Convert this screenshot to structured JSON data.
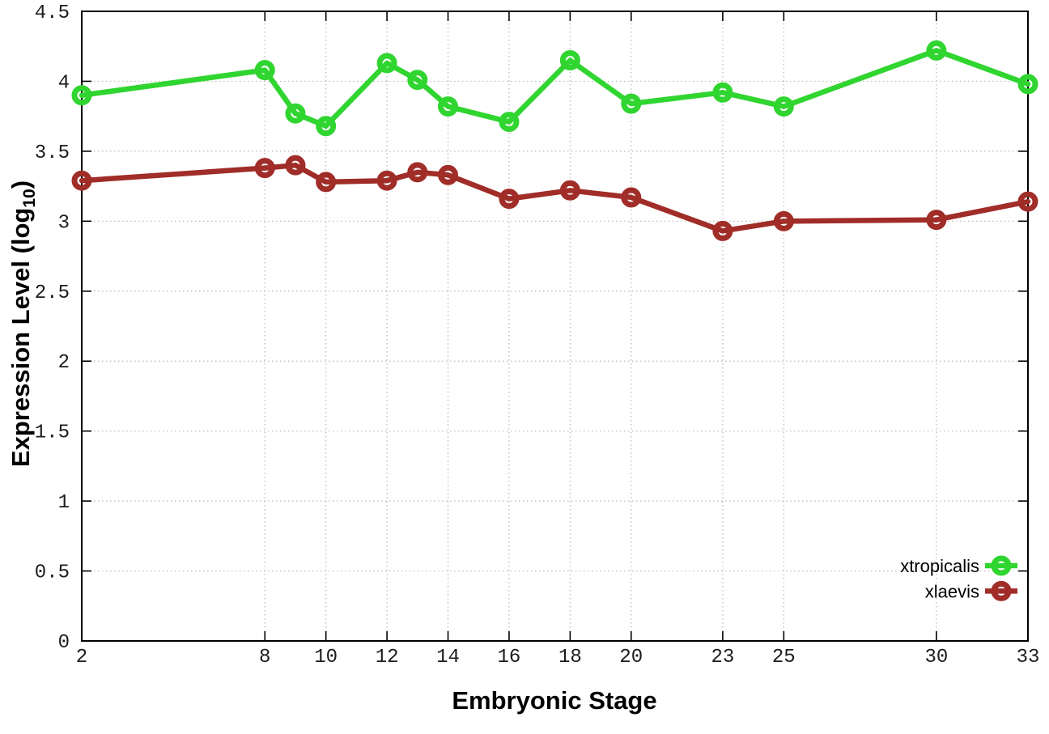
{
  "chart_data": {
    "type": "line",
    "title": "",
    "xlabel": "Embryonic Stage",
    "ylabel": {
      "prefix": "Expression Level (log",
      "subscript": "10",
      "suffix": ")"
    },
    "x": [
      2,
      8,
      9,
      10,
      12,
      13,
      14,
      16,
      18,
      20,
      23,
      25,
      30,
      33
    ],
    "series": [
      {
        "name": "xtropicalis",
        "color": "#30d530",
        "marker": "open-circle",
        "values": [
          3.9,
          4.08,
          3.77,
          3.68,
          4.13,
          4.01,
          3.82,
          3.71,
          4.15,
          3.84,
          3.92,
          3.82,
          4.22,
          3.98
        ]
      },
      {
        "name": "xlaevis",
        "color": "#a02d28",
        "marker": "open-circle",
        "values": [
          3.29,
          3.38,
          3.4,
          3.28,
          3.29,
          3.35,
          3.33,
          3.16,
          3.22,
          3.17,
          2.93,
          3.0,
          3.01,
          3.14
        ]
      }
    ],
    "xlim": [
      2,
      33
    ],
    "ylim": [
      0,
      4.5
    ],
    "xticks": [
      2,
      8,
      10,
      12,
      14,
      16,
      18,
      20,
      23,
      25,
      30,
      33
    ],
    "yticks": [
      0,
      0.5,
      1,
      1.5,
      2,
      2.5,
      3,
      3.5,
      4,
      4.5
    ],
    "grid": "dotted",
    "legend_position": "bottom-right-inside",
    "colors": {
      "background": "#ffffff",
      "border": "#000000",
      "grid": "#b8b8b8",
      "tick_text": "#1c1c1c"
    }
  }
}
